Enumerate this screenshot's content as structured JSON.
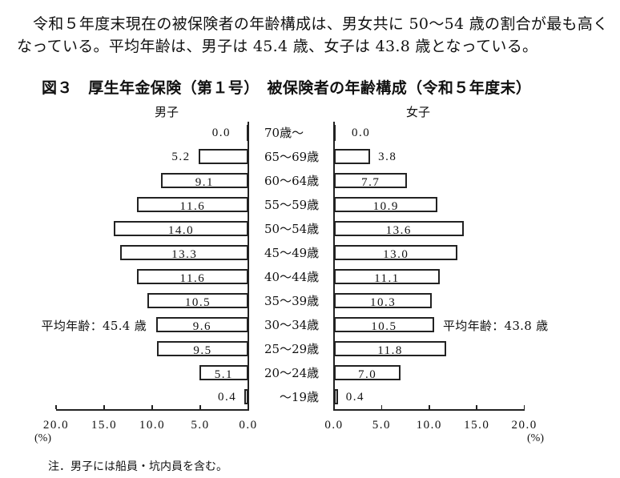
{
  "intro": {
    "line1": "令和５年度末現在の被保険者の年齢構成は、男女共に 50～54 歳の割合が最も高く",
    "line2": "なっている。平均年齢は、男子は 45.4 歳、女子は 43.8 歳となっている。"
  },
  "figure": {
    "title": "図３　厚生年金保険（第１号）　被保険者の年齢構成（令和５年度末）",
    "male_label": "男子",
    "female_label": "女子",
    "male_mean": "平均年齢：45.4 歳",
    "female_mean": "平均年齢：43.8 歳",
    "unit_left": "(%)",
    "unit_right": "(%)",
    "note": "注．男子には船員・坑内員を含む。"
  },
  "chart_data": {
    "type": "bar",
    "orientation": "horizontal",
    "layout": "population-pyramid",
    "title": "図３　厚生年金保険（第１号）　被保険者の年齢構成（令和５年度末）",
    "xlabel": "(%)",
    "ylabel": "",
    "xlim": [
      0,
      20
    ],
    "xticks": [
      "0.0",
      "5.0",
      "10.0",
      "15.0",
      "20.0"
    ],
    "grid": false,
    "legend": "series names shown above each side",
    "categories": [
      "70歳～",
      "65～69歳",
      "60～64歳",
      "55～59歳",
      "50～54歳",
      "45～49歳",
      "40～44歳",
      "35～39歳",
      "30～34歳",
      "25～29歳",
      "20～24歳",
      "～19歳"
    ],
    "series": [
      {
        "name": "男子",
        "side": "left",
        "values": [
          0.0,
          5.2,
          9.1,
          11.6,
          14.0,
          13.3,
          11.6,
          10.5,
          9.6,
          9.5,
          5.1,
          0.4
        ],
        "labels": [
          "0.0",
          "5.2",
          "9.1",
          "11.6",
          "14.0",
          "13.3",
          "11.6",
          "10.5",
          "9.6",
          "9.5",
          "5.1",
          "0.4"
        ],
        "label_positions": [
          "outside",
          "outside",
          "inside",
          "inside",
          "inside",
          "inside",
          "inside",
          "inside",
          "inside",
          "inside",
          "inside",
          "outside"
        ],
        "mean_age": 45.4
      },
      {
        "name": "女子",
        "side": "right",
        "values": [
          0.0,
          3.8,
          7.7,
          10.9,
          13.6,
          13.0,
          11.1,
          10.3,
          10.5,
          11.8,
          7.0,
          0.4
        ],
        "labels": [
          "0.0",
          "3.8",
          "7.7",
          "10.9",
          "13.6",
          "13.0",
          "11.1",
          "10.3",
          "10.5",
          "11.8",
          "7.0",
          "0.4"
        ],
        "label_positions": [
          "outside",
          "outside",
          "inside",
          "inside",
          "inside",
          "inside",
          "inside",
          "inside",
          "inside",
          "inside",
          "inside",
          "outside"
        ],
        "mean_age": 43.8
      }
    ],
    "annotations": [
      "平均年齢：45.4 歳",
      "平均年齢：43.8 歳",
      "注．男子には船員・坑内員を含む。"
    ]
  }
}
